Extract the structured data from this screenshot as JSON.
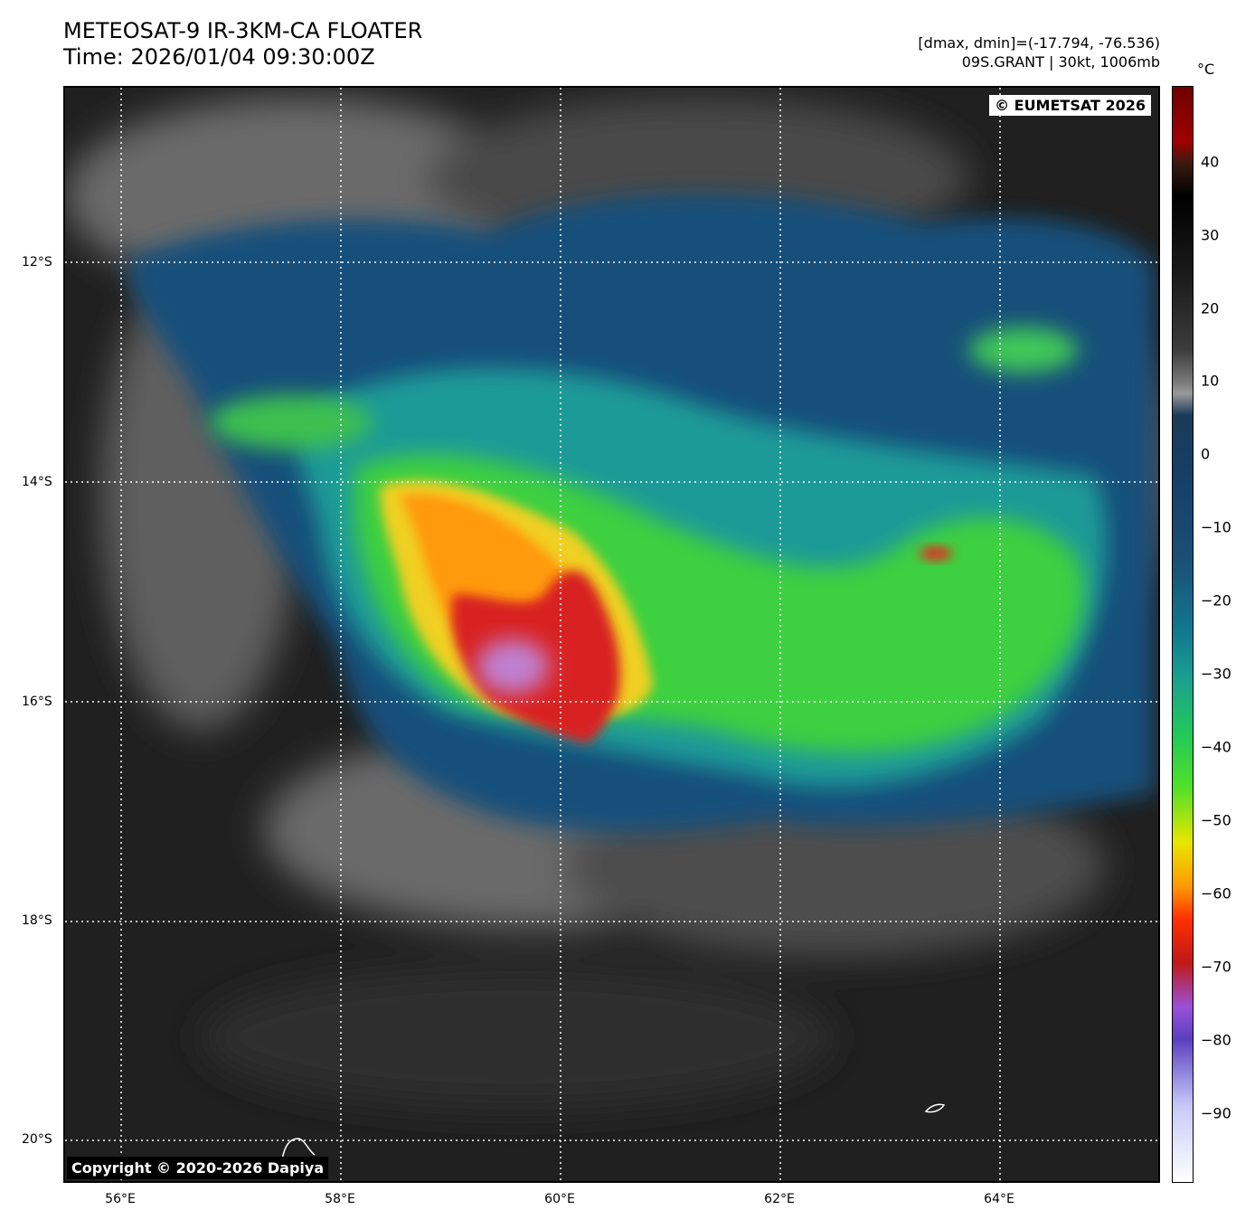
{
  "header": {
    "title_line1": "METEOSAT-9 IR-3KM-CA FLOATER",
    "title_line2": "Time: 2026/01/04 09:30:00Z",
    "info_line1": "[dmax, dmin]=(-17.794, -76.536)",
    "info_line2": "09S.GRANT | 30kt, 1006mb"
  },
  "map": {
    "credit": "© EUMETSAT 2026",
    "copyright": "Copyright © 2020-2026 Dapiya",
    "lat_labels": [
      "12°S",
      "14°S",
      "16°S",
      "18°S",
      "20°S"
    ],
    "lon_labels": [
      "56°E",
      "58°E",
      "60°E",
      "62°E",
      "64°E"
    ]
  },
  "colorbar": {
    "unit": "°C",
    "ticks": [
      "40",
      "30",
      "20",
      "10",
      "0",
      "−10",
      "−20",
      "−30",
      "−40",
      "−50",
      "−60",
      "−70",
      "−80",
      "−90"
    ]
  },
  "colors": {
    "cold_core": "#d82020",
    "coldest": "#c080d0",
    "mid": "#f0d020",
    "warm_cloud": "#40d040",
    "cloud_edge": "#155580",
    "clear_sky": "#222222"
  }
}
